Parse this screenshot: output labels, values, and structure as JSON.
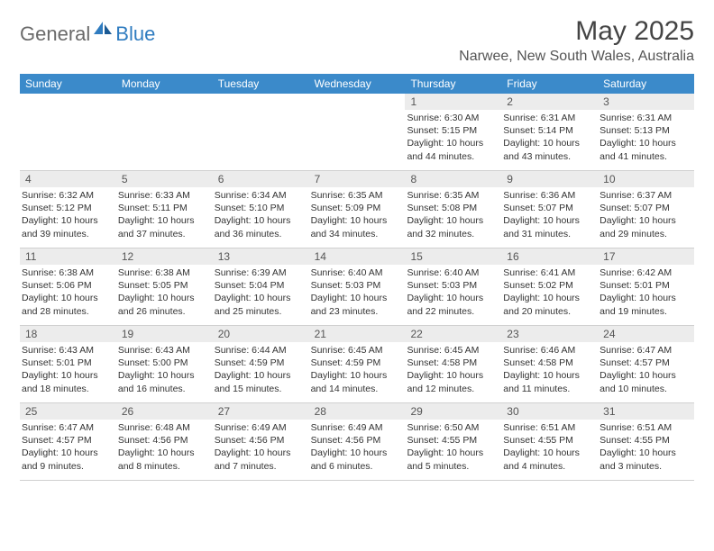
{
  "brand": {
    "name_grey": "General",
    "name_blue": "Blue"
  },
  "title": {
    "month": "May 2025",
    "location": "Narwee, New South Wales, Australia"
  },
  "colors": {
    "header_bar": "#3b8aca",
    "daynum_bg": "#ececec",
    "text": "#333333",
    "logo_grey": "#6a6a6a",
    "logo_blue": "#2f7cc0"
  },
  "days_of_week": [
    "Sunday",
    "Monday",
    "Tuesday",
    "Wednesday",
    "Thursday",
    "Friday",
    "Saturday"
  ],
  "weeks": [
    [
      {
        "n": "",
        "sr": "",
        "ss": "",
        "dl": ""
      },
      {
        "n": "",
        "sr": "",
        "ss": "",
        "dl": ""
      },
      {
        "n": "",
        "sr": "",
        "ss": "",
        "dl": ""
      },
      {
        "n": "",
        "sr": "",
        "ss": "",
        "dl": ""
      },
      {
        "n": "1",
        "sr": "Sunrise: 6:30 AM",
        "ss": "Sunset: 5:15 PM",
        "dl": "Daylight: 10 hours and 44 minutes."
      },
      {
        "n": "2",
        "sr": "Sunrise: 6:31 AM",
        "ss": "Sunset: 5:14 PM",
        "dl": "Daylight: 10 hours and 43 minutes."
      },
      {
        "n": "3",
        "sr": "Sunrise: 6:31 AM",
        "ss": "Sunset: 5:13 PM",
        "dl": "Daylight: 10 hours and 41 minutes."
      }
    ],
    [
      {
        "n": "4",
        "sr": "Sunrise: 6:32 AM",
        "ss": "Sunset: 5:12 PM",
        "dl": "Daylight: 10 hours and 39 minutes."
      },
      {
        "n": "5",
        "sr": "Sunrise: 6:33 AM",
        "ss": "Sunset: 5:11 PM",
        "dl": "Daylight: 10 hours and 37 minutes."
      },
      {
        "n": "6",
        "sr": "Sunrise: 6:34 AM",
        "ss": "Sunset: 5:10 PM",
        "dl": "Daylight: 10 hours and 36 minutes."
      },
      {
        "n": "7",
        "sr": "Sunrise: 6:35 AM",
        "ss": "Sunset: 5:09 PM",
        "dl": "Daylight: 10 hours and 34 minutes."
      },
      {
        "n": "8",
        "sr": "Sunrise: 6:35 AM",
        "ss": "Sunset: 5:08 PM",
        "dl": "Daylight: 10 hours and 32 minutes."
      },
      {
        "n": "9",
        "sr": "Sunrise: 6:36 AM",
        "ss": "Sunset: 5:07 PM",
        "dl": "Daylight: 10 hours and 31 minutes."
      },
      {
        "n": "10",
        "sr": "Sunrise: 6:37 AM",
        "ss": "Sunset: 5:07 PM",
        "dl": "Daylight: 10 hours and 29 minutes."
      }
    ],
    [
      {
        "n": "11",
        "sr": "Sunrise: 6:38 AM",
        "ss": "Sunset: 5:06 PM",
        "dl": "Daylight: 10 hours and 28 minutes."
      },
      {
        "n": "12",
        "sr": "Sunrise: 6:38 AM",
        "ss": "Sunset: 5:05 PM",
        "dl": "Daylight: 10 hours and 26 minutes."
      },
      {
        "n": "13",
        "sr": "Sunrise: 6:39 AM",
        "ss": "Sunset: 5:04 PM",
        "dl": "Daylight: 10 hours and 25 minutes."
      },
      {
        "n": "14",
        "sr": "Sunrise: 6:40 AM",
        "ss": "Sunset: 5:03 PM",
        "dl": "Daylight: 10 hours and 23 minutes."
      },
      {
        "n": "15",
        "sr": "Sunrise: 6:40 AM",
        "ss": "Sunset: 5:03 PM",
        "dl": "Daylight: 10 hours and 22 minutes."
      },
      {
        "n": "16",
        "sr": "Sunrise: 6:41 AM",
        "ss": "Sunset: 5:02 PM",
        "dl": "Daylight: 10 hours and 20 minutes."
      },
      {
        "n": "17",
        "sr": "Sunrise: 6:42 AM",
        "ss": "Sunset: 5:01 PM",
        "dl": "Daylight: 10 hours and 19 minutes."
      }
    ],
    [
      {
        "n": "18",
        "sr": "Sunrise: 6:43 AM",
        "ss": "Sunset: 5:01 PM",
        "dl": "Daylight: 10 hours and 18 minutes."
      },
      {
        "n": "19",
        "sr": "Sunrise: 6:43 AM",
        "ss": "Sunset: 5:00 PM",
        "dl": "Daylight: 10 hours and 16 minutes."
      },
      {
        "n": "20",
        "sr": "Sunrise: 6:44 AM",
        "ss": "Sunset: 4:59 PM",
        "dl": "Daylight: 10 hours and 15 minutes."
      },
      {
        "n": "21",
        "sr": "Sunrise: 6:45 AM",
        "ss": "Sunset: 4:59 PM",
        "dl": "Daylight: 10 hours and 14 minutes."
      },
      {
        "n": "22",
        "sr": "Sunrise: 6:45 AM",
        "ss": "Sunset: 4:58 PM",
        "dl": "Daylight: 10 hours and 12 minutes."
      },
      {
        "n": "23",
        "sr": "Sunrise: 6:46 AM",
        "ss": "Sunset: 4:58 PM",
        "dl": "Daylight: 10 hours and 11 minutes."
      },
      {
        "n": "24",
        "sr": "Sunrise: 6:47 AM",
        "ss": "Sunset: 4:57 PM",
        "dl": "Daylight: 10 hours and 10 minutes."
      }
    ],
    [
      {
        "n": "25",
        "sr": "Sunrise: 6:47 AM",
        "ss": "Sunset: 4:57 PM",
        "dl": "Daylight: 10 hours and 9 minutes."
      },
      {
        "n": "26",
        "sr": "Sunrise: 6:48 AM",
        "ss": "Sunset: 4:56 PM",
        "dl": "Daylight: 10 hours and 8 minutes."
      },
      {
        "n": "27",
        "sr": "Sunrise: 6:49 AM",
        "ss": "Sunset: 4:56 PM",
        "dl": "Daylight: 10 hours and 7 minutes."
      },
      {
        "n": "28",
        "sr": "Sunrise: 6:49 AM",
        "ss": "Sunset: 4:56 PM",
        "dl": "Daylight: 10 hours and 6 minutes."
      },
      {
        "n": "29",
        "sr": "Sunrise: 6:50 AM",
        "ss": "Sunset: 4:55 PM",
        "dl": "Daylight: 10 hours and 5 minutes."
      },
      {
        "n": "30",
        "sr": "Sunrise: 6:51 AM",
        "ss": "Sunset: 4:55 PM",
        "dl": "Daylight: 10 hours and 4 minutes."
      },
      {
        "n": "31",
        "sr": "Sunrise: 6:51 AM",
        "ss": "Sunset: 4:55 PM",
        "dl": "Daylight: 10 hours and 3 minutes."
      }
    ]
  ]
}
